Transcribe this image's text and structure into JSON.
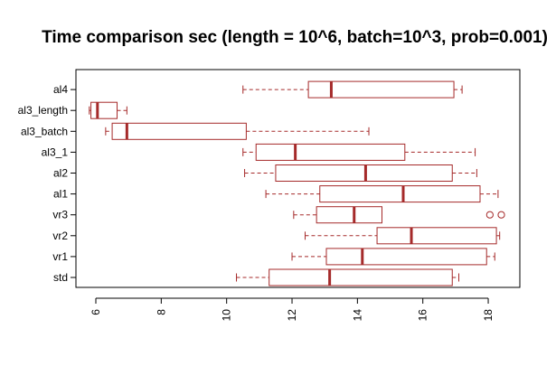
{
  "chart_data": {
    "type": "boxplot",
    "orientation": "horizontal",
    "title": "Time comparison sec (length = 10^6, batch=10^3, prob=0.001)",
    "xlabel": "",
    "ylabel": "",
    "xlim": [
      5.7,
      18.7
    ],
    "xticks": [
      6,
      8,
      10,
      12,
      14,
      16,
      18
    ],
    "box_color": "#a52a2a",
    "categories": [
      "std",
      "vr1",
      "vr2",
      "vr3",
      "al1",
      "al2",
      "al3_1",
      "al3_batch",
      "al3_length",
      "al4"
    ],
    "boxes": [
      {
        "name": "std",
        "whisker_low": 10.3,
        "q1": 11.3,
        "median": 13.15,
        "q3": 16.9,
        "whisker_high": 17.1,
        "outliers": []
      },
      {
        "name": "vr1",
        "whisker_low": 12.0,
        "q1": 13.05,
        "median": 14.15,
        "q3": 17.95,
        "whisker_high": 18.2,
        "outliers": []
      },
      {
        "name": "vr2",
        "whisker_low": 12.4,
        "q1": 14.6,
        "median": 15.65,
        "q3": 18.25,
        "whisker_high": 18.35,
        "outliers": []
      },
      {
        "name": "vr3",
        "whisker_low": 12.05,
        "q1": 12.75,
        "median": 13.9,
        "q3": 14.75,
        "whisker_high": 14.75,
        "outliers": [
          18.05,
          18.4
        ]
      },
      {
        "name": "al1",
        "whisker_low": 11.2,
        "q1": 12.85,
        "median": 15.4,
        "q3": 17.75,
        "whisker_high": 18.3,
        "outliers": []
      },
      {
        "name": "al2",
        "whisker_low": 10.55,
        "q1": 11.5,
        "median": 14.25,
        "q3": 16.9,
        "whisker_high": 17.65,
        "outliers": []
      },
      {
        "name": "al3_1",
        "whisker_low": 10.5,
        "q1": 10.9,
        "median": 12.1,
        "q3": 15.45,
        "whisker_high": 17.6,
        "outliers": []
      },
      {
        "name": "al3_batch",
        "whisker_low": 6.3,
        "q1": 6.5,
        "median": 6.95,
        "q3": 10.6,
        "whisker_high": 14.35,
        "outliers": []
      },
      {
        "name": "al3_length",
        "whisker_low": 5.8,
        "q1": 5.85,
        "median": 6.05,
        "q3": 6.65,
        "whisker_high": 6.95,
        "outliers": []
      },
      {
        "name": "al4",
        "whisker_low": 10.5,
        "q1": 12.5,
        "median": 13.2,
        "q3": 16.95,
        "whisker_high": 17.2,
        "outliers": []
      }
    ]
  }
}
